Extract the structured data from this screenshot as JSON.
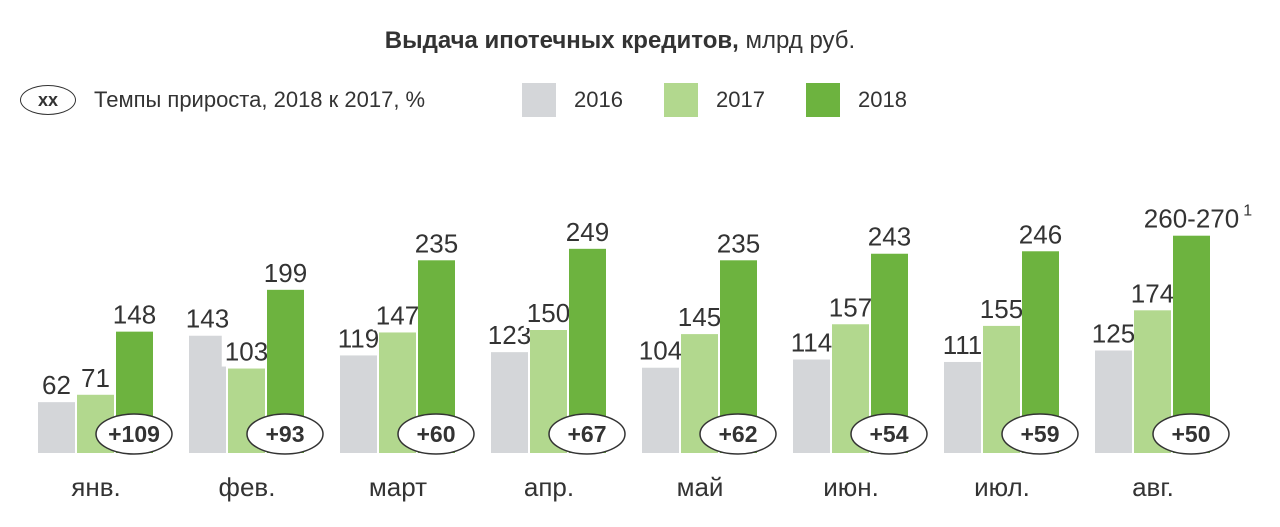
{
  "title": {
    "bold": "Выдача ипотечных кредитов,",
    "rest": " млрд руб."
  },
  "legend": {
    "growth_marker": "xx",
    "growth_label": "Темпы прироста, 2018 к 2017, %"
  },
  "colors": {
    "2016": "#d4d6d9",
    "2017": "#b2d88e",
    "2018": "#6db33f",
    "text": "#333333"
  },
  "chart_data": {
    "type": "bar",
    "title": "Выдача ипотечных кредитов, млрд руб.",
    "categories": [
      "янв.",
      "фев.",
      "март",
      "апр.",
      "май",
      "июн.",
      "июл.",
      "авг."
    ],
    "series": [
      {
        "name": "2016",
        "values": [
          62,
          143,
          119,
          123,
          104,
          114,
          111,
          125
        ],
        "labels": [
          "62",
          "143",
          "119",
          "123",
          "104",
          "114",
          "111",
          "125"
        ]
      },
      {
        "name": "2017",
        "values": [
          71,
          103,
          147,
          150,
          145,
          157,
          155,
          174
        ],
        "labels": [
          "71",
          "103",
          "147",
          "150",
          "145",
          "157",
          "155",
          "174"
        ]
      },
      {
        "name": "2018",
        "values": [
          148,
          199,
          235,
          249,
          235,
          243,
          246,
          265
        ],
        "labels": [
          "148",
          "199",
          "235",
          "249",
          "235",
          "243",
          "246",
          "260-270"
        ]
      }
    ],
    "label_superscript": {
      "series": "2018",
      "category": "авг.",
      "text": "1"
    },
    "growth": [
      "+109",
      "+93",
      "+60",
      "+67",
      "+62",
      "+54",
      "+59",
      "+50"
    ],
    "ylim": [
      0,
      270
    ],
    "xlabel": "",
    "ylabel": "",
    "grid": false,
    "legend_position": "top"
  }
}
